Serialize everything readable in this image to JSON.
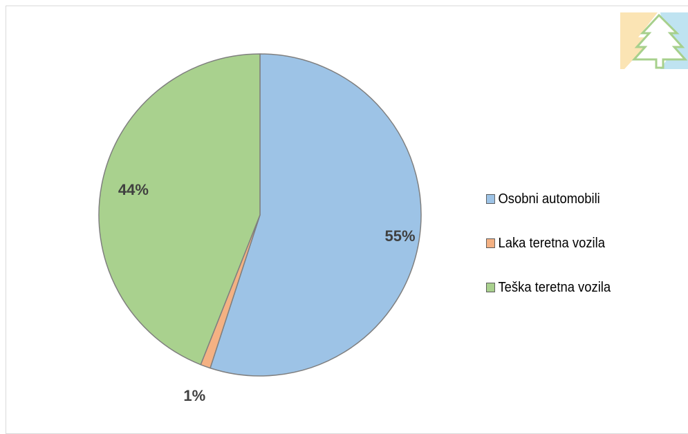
{
  "chart_data": {
    "type": "pie",
    "title": "",
    "slices": [
      {
        "label": "Osobni automobili",
        "value": 55,
        "display": "55%",
        "color": "#9DC3E6"
      },
      {
        "label": "Laka teretna vozila",
        "value": 1,
        "display": "1%",
        "color": "#F4B183"
      },
      {
        "label": "Teška teretna vozila",
        "value": 44,
        "display": "44%",
        "color": "#A9D18E"
      }
    ],
    "start": "12 o'clock",
    "direction": "clockwise",
    "legend_position": "right",
    "border_color": "#7F7F7F"
  },
  "logo": {
    "icon": "pine-tree-logo-icon",
    "colors": [
      "#FBE4B4",
      "#BFE3F1",
      "#A7D08C"
    ]
  }
}
